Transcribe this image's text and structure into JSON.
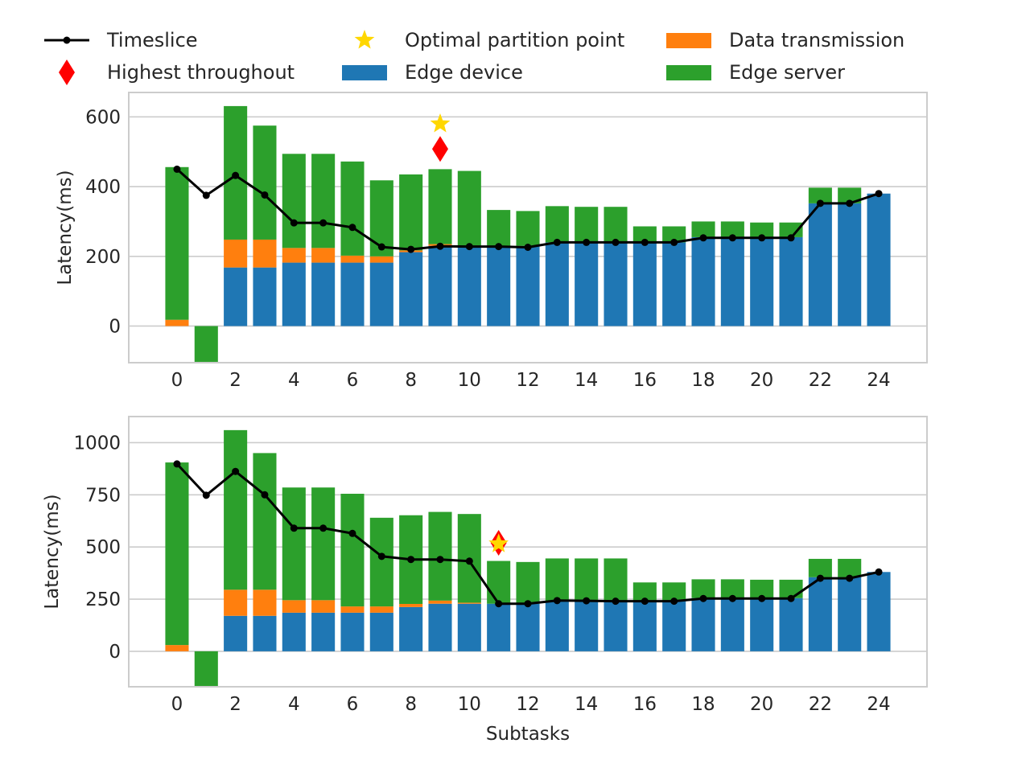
{
  "legend": {
    "items": [
      {
        "key": "timeslice",
        "label": "Timeslice",
        "marker": "line-dot",
        "color": "#000000"
      },
      {
        "key": "optimal",
        "label": "Optimal partition point",
        "marker": "star",
        "color": "#FFD700"
      },
      {
        "key": "transmission",
        "label": "Data transmission",
        "marker": "patch",
        "color": "#FF7F0E"
      },
      {
        "key": "highest",
        "label": "Highest throughout",
        "marker": "diamond",
        "color": "#FF0000"
      },
      {
        "key": "device",
        "label": "Edge device",
        "marker": "patch",
        "color": "#1F77B4"
      },
      {
        "key": "server",
        "label": "Edge server",
        "marker": "patch",
        "color": "#2CA02C"
      }
    ]
  },
  "chart_data": [
    {
      "type": "bar",
      "stacked": true,
      "x": [
        0,
        1,
        2,
        3,
        4,
        5,
        6,
        7,
        8,
        9,
        10,
        11,
        12,
        13,
        14,
        15,
        16,
        17,
        18,
        19,
        20,
        21,
        22,
        23,
        24
      ],
      "xticks": [
        0,
        2,
        4,
        6,
        8,
        10,
        12,
        14,
        16,
        18,
        20,
        22,
        24
      ],
      "xlim": [
        -1.65,
        25.65
      ],
      "ylim": [
        -105,
        670
      ],
      "yticks": [
        0,
        200,
        400,
        600
      ],
      "ylabel": "Latency(ms)",
      "xlabel": "",
      "grid": true,
      "colors": {
        "device": "#1F77B4",
        "transmission": "#FF7F0E",
        "server": "#2CA02C",
        "line": "#000000",
        "star": "#FFD700",
        "diamond": "#FF0000"
      },
      "series": [
        {
          "name": "Edge device",
          "values": [
            0,
            0,
            168,
            168,
            182,
            182,
            182,
            182,
            212,
            230,
            230,
            230,
            230,
            240,
            240,
            240,
            240,
            240,
            255,
            255,
            255,
            255,
            352,
            352,
            380
          ]
        },
        {
          "name": "Data transmission",
          "values": [
            18,
            0,
            80,
            80,
            42,
            42,
            20,
            18,
            5,
            5,
            0,
            0,
            0,
            0,
            0,
            0,
            0,
            0,
            0,
            0,
            0,
            0,
            0,
            0,
            0
          ]
        },
        {
          "name": "Edge server",
          "values": [
            438,
            -105,
            383,
            327,
            270,
            270,
            270,
            218,
            218,
            215,
            215,
            103,
            100,
            104,
            102,
            102,
            46,
            46,
            45,
            45,
            42,
            42,
            45,
            45,
            0
          ]
        },
        {
          "name": "Timeslice",
          "type": "line",
          "values": [
            450,
            375,
            432,
            376,
            296,
            296,
            283,
            227,
            220,
            229,
            228,
            228,
            226,
            240,
            240,
            240,
            240,
            240,
            253,
            253,
            253,
            253,
            352,
            352,
            380
          ]
        }
      ],
      "markers": {
        "optimal": {
          "x": 9,
          "y": 580
        },
        "highest": {
          "x": 9,
          "y": 508
        }
      }
    },
    {
      "type": "bar",
      "stacked": true,
      "x": [
        0,
        1,
        2,
        3,
        4,
        5,
        6,
        7,
        8,
        9,
        10,
        11,
        12,
        13,
        14,
        15,
        16,
        17,
        18,
        19,
        20,
        21,
        22,
        23,
        24
      ],
      "xticks": [
        0,
        2,
        4,
        6,
        8,
        10,
        12,
        14,
        16,
        18,
        20,
        22,
        24
      ],
      "xlim": [
        -1.65,
        25.65
      ],
      "ylim": [
        -170,
        1125
      ],
      "yticks": [
        0,
        250,
        500,
        750,
        1000
      ],
      "ylabel": "Latency(ms)",
      "xlabel": "Subtasks",
      "grid": true,
      "colors": {
        "device": "#1F77B4",
        "transmission": "#FF7F0E",
        "server": "#2CA02C",
        "line": "#000000",
        "star": "#FFD700",
        "diamond": "#FF0000"
      },
      "series": [
        {
          "name": "Edge device",
          "values": [
            0,
            0,
            170,
            170,
            185,
            185,
            185,
            185,
            212,
            228,
            228,
            228,
            228,
            240,
            240,
            240,
            240,
            240,
            255,
            255,
            255,
            255,
            355,
            355,
            380
          ]
        },
        {
          "name": "Data transmission",
          "values": [
            30,
            0,
            125,
            125,
            60,
            60,
            30,
            30,
            15,
            15,
            5,
            0,
            0,
            0,
            0,
            0,
            0,
            0,
            0,
            0,
            0,
            0,
            0,
            0,
            0
          ]
        },
        {
          "name": "Edge server",
          "values": [
            875,
            -170,
            765,
            655,
            540,
            540,
            540,
            425,
            425,
            425,
            425,
            205,
            200,
            205,
            205,
            205,
            90,
            90,
            90,
            90,
            88,
            88,
            88,
            88,
            0
          ]
        },
        {
          "name": "Timeslice",
          "type": "line",
          "values": [
            898,
            748,
            862,
            750,
            590,
            590,
            565,
            455,
            440,
            440,
            432,
            228,
            228,
            243,
            242,
            240,
            240,
            240,
            253,
            253,
            253,
            253,
            350,
            350,
            380
          ]
        }
      ],
      "markers": {
        "optimal": {
          "x": 11,
          "y": 515
        },
        "highest": {
          "x": 11,
          "y": 520
        }
      }
    }
  ]
}
